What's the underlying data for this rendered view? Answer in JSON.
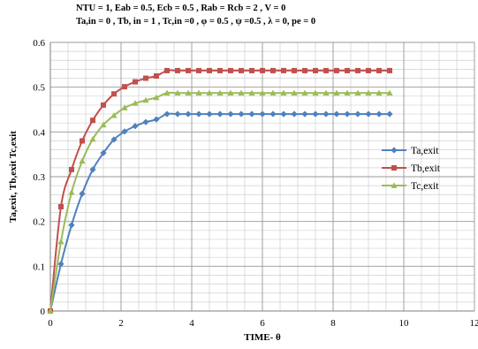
{
  "chart_data": {
    "type": "line",
    "title_lines": [
      "NTU = 1, Eab = 0.5, Ecb =  0.5 , Rab =  Rcb = 2 , V = 0",
      "Ta,in = 0 , Tb, in = 1 , Tc,in =0 , φ = 0.5 , ψ =0.5 , λ = 0, pe =  0"
    ],
    "xlabel": "TIME-  θ",
    "ylabel": "Ta,exit, Tb,exit Tc,exit",
    "xlim": [
      0,
      12
    ],
    "ylim": [
      0,
      0.6
    ],
    "x_ticks": [
      "0",
      "2",
      "4",
      "6",
      "8",
      "10",
      "12"
    ],
    "y_ticks": [
      "0",
      "0.1",
      "0.2",
      "0.3",
      "0.4",
      "0.5",
      "0.6"
    ],
    "grid": true,
    "minor_grid": true,
    "legend_position": "right",
    "x": [
      0,
      0.3,
      0.6,
      0.9,
      1.2,
      1.5,
      1.8,
      2.1,
      2.4,
      2.7,
      3.0,
      3.3,
      3.6,
      3.9,
      4.2,
      4.5,
      4.8,
      5.1,
      5.4,
      5.7,
      6.0,
      6.3,
      6.6,
      6.9,
      7.2,
      7.5,
      7.8,
      8.1,
      8.4,
      8.7,
      9.0,
      9.3,
      9.6
    ],
    "series": [
      {
        "name": "Ta,exit",
        "color": "#4F81BD",
        "marker": "diamond",
        "values": [
          0,
          0.105,
          0.192,
          0.262,
          0.316,
          0.353,
          0.383,
          0.401,
          0.413,
          0.422,
          0.428,
          0.44,
          0.44,
          0.44,
          0.44,
          0.44,
          0.44,
          0.44,
          0.44,
          0.44,
          0.44,
          0.44,
          0.44,
          0.44,
          0.44,
          0.44,
          0.44,
          0.44,
          0.44,
          0.44,
          0.44,
          0.44,
          0.44
        ]
      },
      {
        "name": "Tb,exit",
        "color": "#C0504D",
        "marker": "square",
        "values": [
          0,
          0.233,
          0.316,
          0.38,
          0.426,
          0.46,
          0.485,
          0.501,
          0.512,
          0.52,
          0.525,
          0.537,
          0.537,
          0.537,
          0.537,
          0.537,
          0.537,
          0.537,
          0.537,
          0.537,
          0.537,
          0.537,
          0.537,
          0.537,
          0.537,
          0.537,
          0.537,
          0.537,
          0.537,
          0.537,
          0.537,
          0.537,
          0.537
        ]
      },
      {
        "name": "Tc,exit",
        "color": "#9BBB59",
        "marker": "triangle",
        "values": [
          0,
          0.155,
          0.265,
          0.335,
          0.384,
          0.416,
          0.437,
          0.454,
          0.464,
          0.471,
          0.477,
          0.487,
          0.487,
          0.487,
          0.487,
          0.487,
          0.487,
          0.487,
          0.487,
          0.487,
          0.487,
          0.487,
          0.487,
          0.487,
          0.487,
          0.487,
          0.487,
          0.487,
          0.487,
          0.487,
          0.487,
          0.487,
          0.487
        ]
      }
    ]
  }
}
